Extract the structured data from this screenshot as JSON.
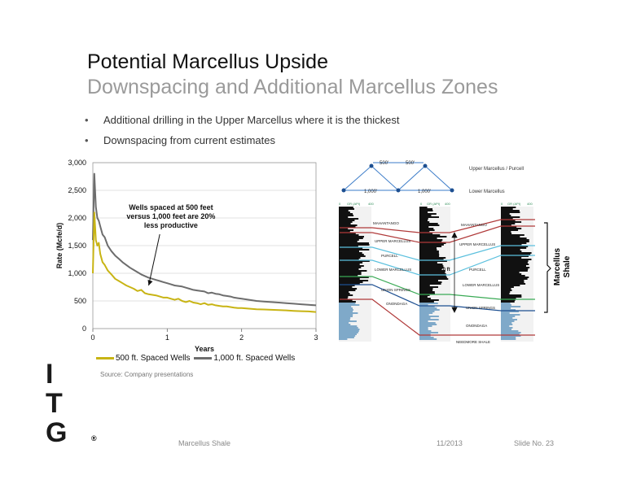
{
  "slide": {
    "title": "Potential Marcellus Upside",
    "subtitle": "Downspacing and Additional Marcellus Zones",
    "bullets": [
      "Additional drilling in the Upper Marcellus where it is the thickest",
      "Downspacing from current estimates"
    ],
    "bullet_char": "•",
    "source": "Source: Company presentations",
    "logo_letters": [
      "I",
      "T",
      "G"
    ],
    "logo_mark": "®",
    "footer": {
      "left": "Marcellus Shale",
      "date": "11/2013",
      "slide_no": "Slide No. 23"
    }
  },
  "chart_data": {
    "type": "line",
    "xlabel": "Years",
    "ylabel": "Rate (Mcfe/d)",
    "xlim": [
      0,
      3
    ],
    "ylim": [
      0,
      3000
    ],
    "xticks": [
      0,
      1,
      2,
      3
    ],
    "yticks": [
      0,
      500,
      1000,
      1500,
      2000,
      2500,
      3000
    ],
    "ytick_labels": [
      "0",
      "500",
      "1,000",
      "1,500",
      "2,000",
      "2,500",
      "3,000"
    ],
    "grid": "horizontal",
    "legend_position": "bottom",
    "annotation": {
      "lines": [
        "Wells spaced at 500 feet",
        "versus 1,000 feet are 20%",
        "less productive"
      ],
      "arrow_to": [
        0.75,
        780
      ]
    },
    "series": [
      {
        "name": "1,000 ft. Spaced Wells",
        "color": "#6d6d6d",
        "x": [
          0,
          0.02,
          0.04,
          0.06,
          0.08,
          0.1,
          0.13,
          0.16,
          0.2,
          0.25,
          0.3,
          0.35,
          0.4,
          0.45,
          0.5,
          0.55,
          0.6,
          0.65,
          0.7,
          0.75,
          0.8,
          0.85,
          0.9,
          0.95,
          1.0,
          1.05,
          1.1,
          1.15,
          1.2,
          1.25,
          1.3,
          1.35,
          1.4,
          1.45,
          1.5,
          1.55,
          1.6,
          1.65,
          1.7,
          1.75,
          1.8,
          1.85,
          1.9,
          1.95,
          2.0,
          2.1,
          2.2,
          2.3,
          2.4,
          2.5,
          2.6,
          2.7,
          2.8,
          2.9,
          3.0
        ],
        "y": [
          1600,
          2800,
          2200,
          2000,
          1950,
          1850,
          1700,
          1650,
          1500,
          1400,
          1320,
          1260,
          1200,
          1150,
          1100,
          1060,
          1020,
          980,
          950,
          920,
          900,
          880,
          860,
          840,
          820,
          800,
          780,
          770,
          760,
          740,
          720,
          700,
          690,
          680,
          670,
          640,
          650,
          630,
          620,
          600,
          590,
          580,
          560,
          550,
          540,
          520,
          500,
          490,
          480,
          470,
          460,
          450,
          440,
          430,
          420
        ]
      },
      {
        "name": "500 ft. Spaced Wells",
        "color": "#c8b414",
        "x": [
          0,
          0.02,
          0.04,
          0.06,
          0.08,
          0.1,
          0.13,
          0.16,
          0.2,
          0.25,
          0.3,
          0.35,
          0.4,
          0.45,
          0.5,
          0.55,
          0.6,
          0.65,
          0.7,
          0.75,
          0.8,
          0.85,
          0.9,
          0.95,
          1.0,
          1.05,
          1.1,
          1.15,
          1.2,
          1.25,
          1.3,
          1.35,
          1.4,
          1.45,
          1.5,
          1.55,
          1.6,
          1.65,
          1.7,
          1.75,
          1.8,
          1.85,
          1.9,
          1.95,
          2.0,
          2.1,
          2.2,
          2.3,
          2.4,
          2.5,
          2.6,
          2.7,
          2.8,
          2.9,
          3.0
        ],
        "y": [
          1000,
          2100,
          1600,
          1500,
          1550,
          1350,
          1200,
          1150,
          1050,
          980,
          900,
          860,
          820,
          780,
          750,
          720,
          680,
          700,
          640,
          620,
          610,
          600,
          580,
          560,
          560,
          540,
          520,
          540,
          500,
          480,
          500,
          470,
          460,
          440,
          460,
          430,
          440,
          420,
          410,
          400,
          400,
          390,
          380,
          370,
          370,
          360,
          350,
          345,
          340,
          335,
          330,
          320,
          315,
          310,
          300
        ]
      }
    ]
  },
  "logs_diagram": {
    "spacing_labels_top": [
      "500'",
      "500'"
    ],
    "spacing_labels_bottom": [
      "1,000'",
      "1,000'"
    ],
    "zone_labels": [
      "Upper Marcellus / Purcell",
      "Lower Marcellus"
    ],
    "log_header": [
      "GR (API)",
      "400"
    ],
    "log_header_zero": "0",
    "formations": [
      "MAHANTANGO",
      "UPPER MARCELLUS",
      "PURCELL",
      "LOWER MARCELLUS",
      "UNION SPRINGS",
      "ONONDAGA",
      "NEEDMORE SHALE"
    ],
    "thickness_label": "320 ft",
    "bracket_label": [
      "Marcellus",
      "Shale"
    ]
  }
}
